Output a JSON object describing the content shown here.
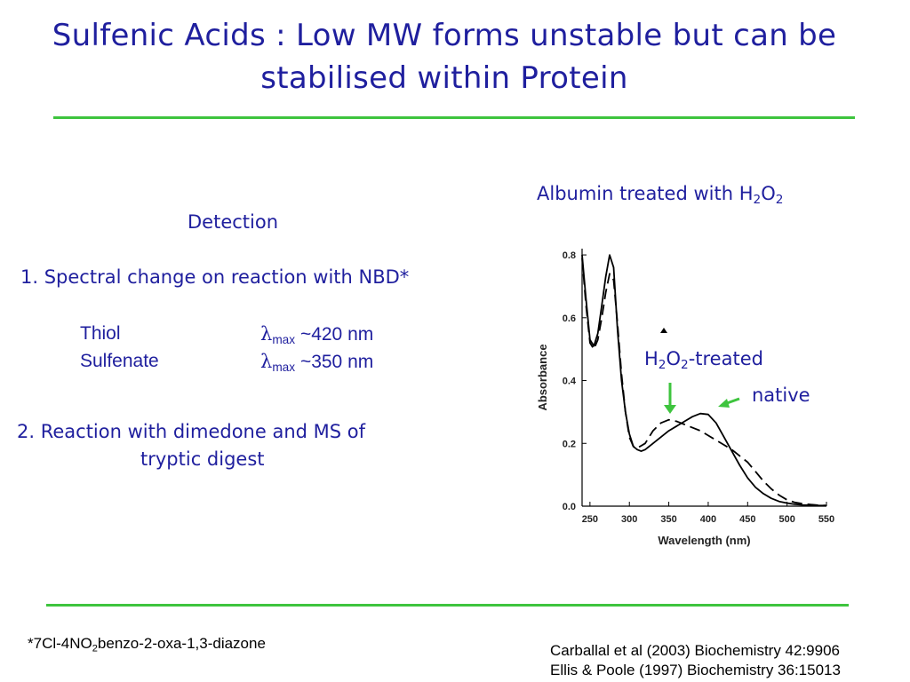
{
  "title": {
    "line1": "Sulfenic Acids : Low MW forms unstable but can be",
    "line2": "stabilised within Protein"
  },
  "left": {
    "heading": "Detection",
    "item1": "1. Spectral change on reaction with NBD*",
    "rows": [
      {
        "name": "Thiol",
        "lambda": "λ",
        "sub": "max",
        "value": "~420 nm"
      },
      {
        "name": "Sulfenate",
        "lambda": "λ",
        "sub": "max",
        "value": "~350 nm"
      }
    ],
    "item2_line1": "2. Reaction with dimedone and MS of",
    "item2_line2": "tryptic digest"
  },
  "chart_label": {
    "text": "Albumin treated with H",
    "sub1": "2",
    "mid": "O",
    "sub2": "2"
  },
  "annotations": {
    "treated": {
      "pre": "H",
      "s1": "2",
      "mid": "O",
      "s2": "2",
      "post": "-treated"
    },
    "native": "native"
  },
  "footnote": {
    "pre": "*7Cl-4NO",
    "sub": "2",
    "post": "benzo-2-oxa-1,3-diazone"
  },
  "references": [
    "Carballal et al (2003) Biochemistry 42:9906",
    "Ellis & Poole (1997) Biochemistry 36:15013"
  ],
  "colors": {
    "title": "#1f1f9e",
    "rule": "#3ec43e",
    "arrow": "#3ec43e"
  },
  "chart_data": {
    "type": "line",
    "xlabel": "Wavelength (nm)",
    "ylabel": "Absorbance",
    "xlim": [
      240,
      550
    ],
    "ylim": [
      0.0,
      0.82
    ],
    "xticks": [
      250,
      300,
      350,
      400,
      450,
      500,
      550
    ],
    "yticks": [
      0.0,
      0.2,
      0.4,
      0.6,
      0.8
    ],
    "series": [
      {
        "name": "native",
        "style": "solid",
        "x": [
          240,
          245,
          250,
          255,
          260,
          265,
          270,
          275,
          280,
          285,
          290,
          295,
          300,
          305,
          310,
          315,
          320,
          330,
          340,
          350,
          360,
          370,
          380,
          390,
          400,
          410,
          420,
          430,
          440,
          450,
          460,
          470,
          480,
          490,
          500,
          510,
          520,
          530,
          540,
          550
        ],
        "y": [
          0.8,
          0.66,
          0.53,
          0.51,
          0.55,
          0.64,
          0.73,
          0.8,
          0.76,
          0.56,
          0.4,
          0.3,
          0.23,
          0.19,
          0.18,
          0.175,
          0.18,
          0.2,
          0.22,
          0.24,
          0.255,
          0.27,
          0.285,
          0.295,
          0.292,
          0.265,
          0.22,
          0.175,
          0.13,
          0.09,
          0.06,
          0.04,
          0.025,
          0.015,
          0.01,
          0.006,
          0.004,
          0.003,
          0.002,
          0.002
        ]
      },
      {
        "name": "H2O2-treated",
        "style": "dashed",
        "x": [
          240,
          245,
          250,
          255,
          260,
          265,
          270,
          275,
          280,
          285,
          290,
          295,
          300,
          305,
          310,
          320,
          330,
          340,
          350,
          360,
          370,
          380,
          390,
          400,
          410,
          420,
          430,
          440,
          450,
          460,
          470,
          480,
          490,
          500,
          510,
          520,
          530,
          540,
          550
        ],
        "y": [
          0.79,
          0.64,
          0.52,
          0.5,
          0.53,
          0.6,
          0.68,
          0.74,
          0.72,
          0.58,
          0.42,
          0.3,
          0.22,
          0.19,
          0.185,
          0.2,
          0.24,
          0.265,
          0.275,
          0.27,
          0.26,
          0.25,
          0.24,
          0.225,
          0.21,
          0.195,
          0.18,
          0.16,
          0.14,
          0.11,
          0.08,
          0.055,
          0.035,
          0.02,
          0.012,
          0.008,
          0.005,
          0.003,
          0.002
        ]
      }
    ]
  }
}
